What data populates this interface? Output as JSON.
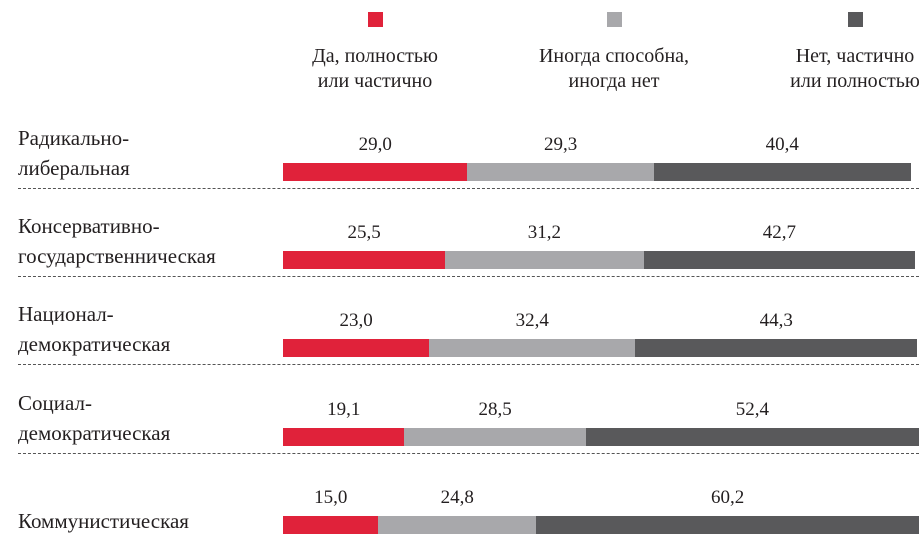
{
  "chart_data": {
    "type": "stacked-bar",
    "categories": [
      "Радикально-\nлиберальная",
      "Консервативно-\nгосударственническая",
      "Национал-\nдемократическая",
      "Социал-\nдемократическая",
      "Коммунистическая"
    ],
    "series": [
      {
        "name": "Да, полностью\nили частично",
        "color": "#e0223a",
        "values": [
          29.0,
          25.5,
          23.0,
          19.1,
          15.0
        ],
        "value_labels": [
          "29,0",
          "25,5",
          "23,0",
          "19,1",
          "15,0"
        ]
      },
      {
        "name": "Иногда способна,\nиногда нет",
        "color": "#a8a8ab",
        "values": [
          29.3,
          31.2,
          32.4,
          28.5,
          24.8
        ],
        "value_labels": [
          "29,3",
          "31,2",
          "32,4",
          "28,5",
          "24,8"
        ]
      },
      {
        "name": "Нет, частично\nили полностью",
        "color": "#59595b",
        "values": [
          40.4,
          42.7,
          44.3,
          52.4,
          60.2
        ],
        "value_labels": [
          "40,4",
          "42,7",
          "44,3",
          "52,4",
          "60,2"
        ]
      }
    ],
    "xlim": [
      0,
      100
    ]
  }
}
